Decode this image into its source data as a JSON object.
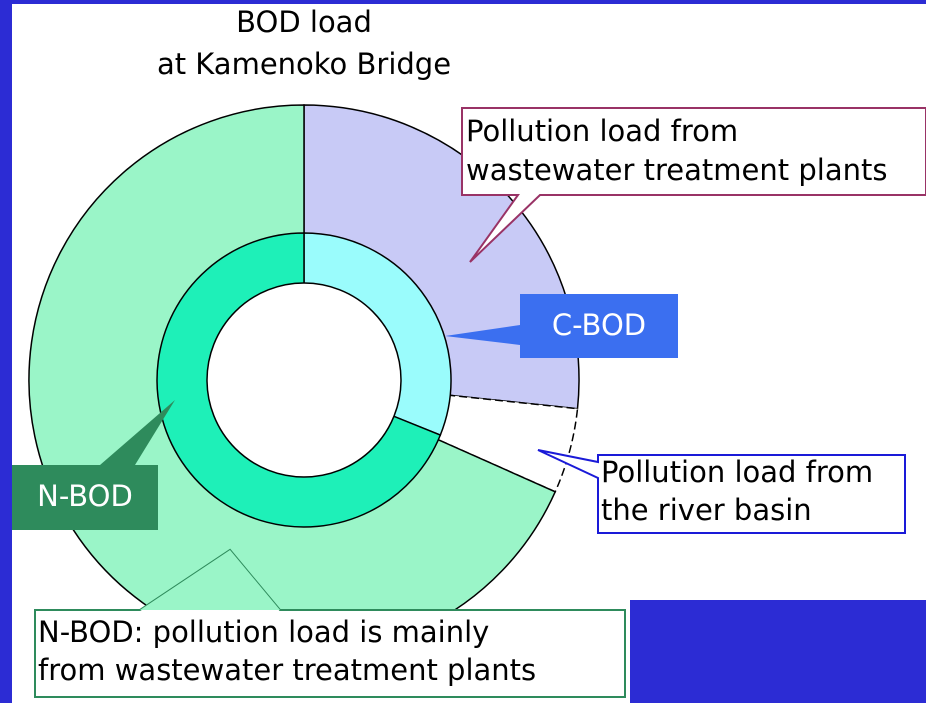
{
  "title": [
    "BOD load",
    "at Kamenoko Bridge"
  ],
  "callouts": {
    "wastewater": [
      "Pollution load from",
      "wastewater treatment plants"
    ],
    "c_bod": "C-BOD",
    "river_basin": [
      "Pollution load from",
      "the river basin"
    ],
    "n_bod": "N-BOD",
    "n_bod_note": [
      "N-BOD: pollution load is mainly",
      "from wastewater treatment plants"
    ]
  }
}
